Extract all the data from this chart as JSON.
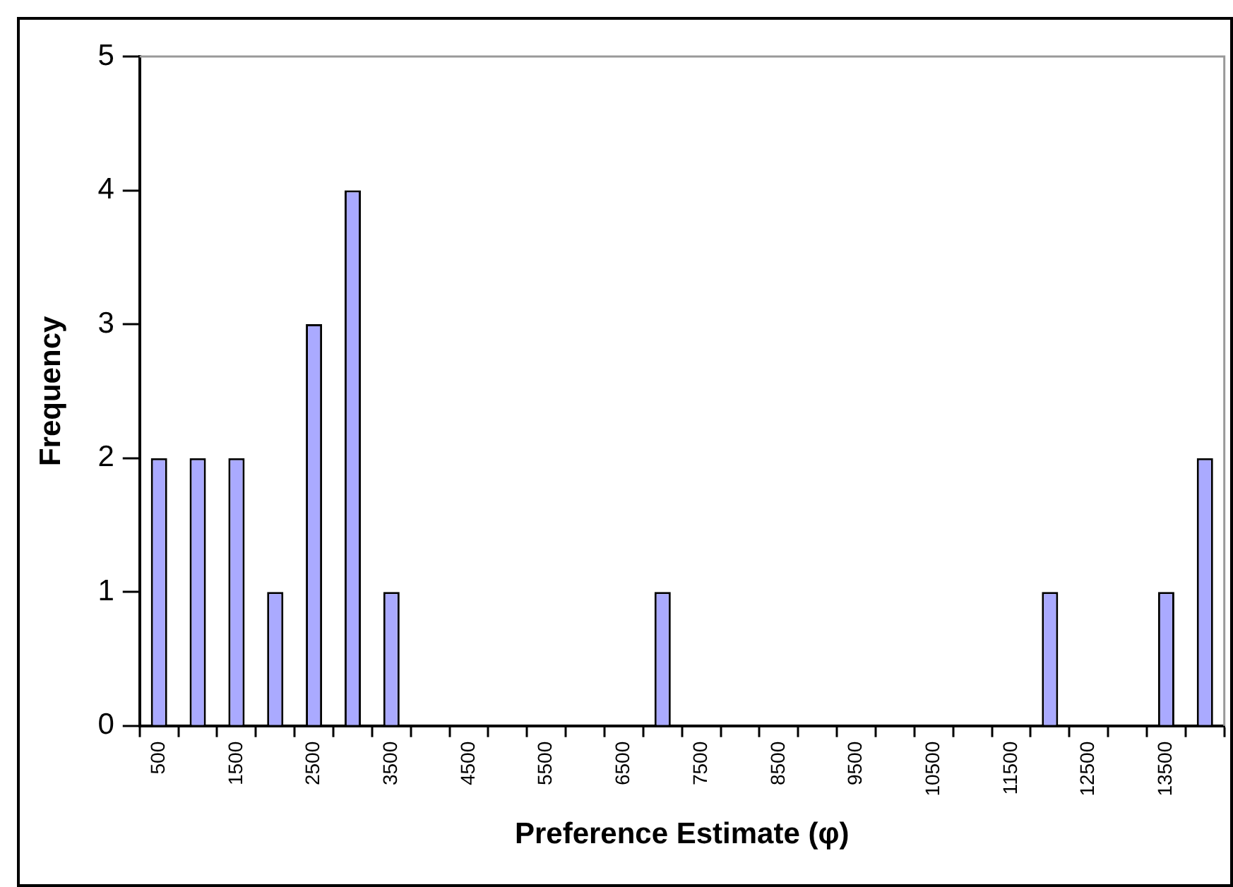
{
  "chart_data": {
    "type": "bar",
    "xlabel": "Preference Estimate (φ)",
    "ylabel": "Frequency",
    "categories": [
      "500",
      null,
      "1500",
      null,
      "2500",
      null,
      "3500",
      null,
      "4500",
      null,
      "5500",
      null,
      "6500",
      null,
      "7500",
      null,
      "8500",
      null,
      "9500",
      null,
      "10500",
      null,
      "11500",
      null,
      "12500",
      null,
      "13500",
      null
    ],
    "values": [
      2,
      2,
      2,
      1,
      3,
      4,
      1,
      0,
      0,
      0,
      0,
      0,
      0,
      1,
      0,
      0,
      0,
      0,
      0,
      0,
      0,
      0,
      0,
      1,
      0,
      0,
      1,
      2
    ],
    "color": "#aaaaff",
    "ylim": [
      0,
      5
    ],
    "yticks": [
      0,
      1,
      2,
      3,
      4,
      5
    ],
    "grid": false,
    "legend": false
  }
}
